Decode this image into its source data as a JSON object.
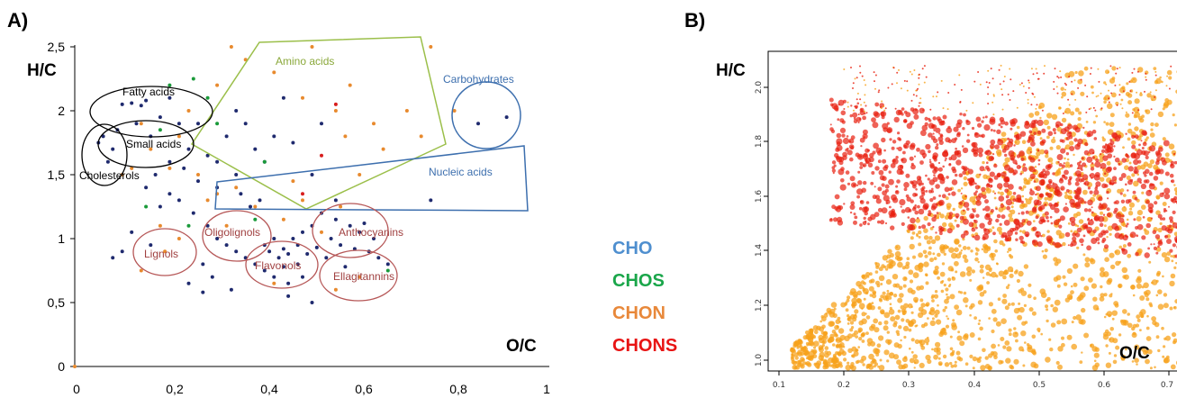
{
  "chart_data": [
    {
      "type": "scatter",
      "panel_label": "A)",
      "xlabel": "O/C",
      "ylabel": "H/C",
      "xlim": [
        0,
        1
      ],
      "ylim": [
        0,
        2.5
      ],
      "x_ticks": [
        "0",
        "0,2",
        "0,4",
        "0,6",
        "0,8",
        "1"
      ],
      "y_ticks": [
        "0",
        "0,5",
        "1",
        "1,5",
        "2",
        "2,5"
      ],
      "grid": false,
      "series": [
        {
          "name": "CHO",
          "color": "#1f2a6e",
          "points": [
            [
              0.05,
              1.75
            ],
            [
              0.06,
              1.8
            ],
            [
              0.07,
              1.6
            ],
            [
              0.08,
              1.7
            ],
            [
              0.09,
              1.85
            ],
            [
              0.1,
              2.05
            ],
            [
              0.12,
              2.06
            ],
            [
              0.14,
              2.04
            ],
            [
              0.15,
              2.08
            ],
            [
              0.13,
              1.9
            ],
            [
              0.16,
              1.8
            ],
            [
              0.18,
              1.95
            ],
            [
              0.2,
              2.1
            ],
            [
              0.22,
              1.9
            ],
            [
              0.24,
              1.7
            ],
            [
              0.2,
              1.6
            ],
            [
              0.17,
              1.5
            ],
            [
              0.15,
              1.4
            ],
            [
              0.22,
              1.3
            ],
            [
              0.25,
              1.2
            ],
            [
              0.28,
              1.1
            ],
            [
              0.3,
              1.0
            ],
            [
              0.32,
              0.95
            ],
            [
              0.34,
              0.9
            ],
            [
              0.36,
              0.85
            ],
            [
              0.38,
              0.8
            ],
            [
              0.4,
              0.95
            ],
            [
              0.41,
              0.9
            ],
            [
              0.42,
              1.0
            ],
            [
              0.43,
              0.85
            ],
            [
              0.44,
              0.92
            ],
            [
              0.45,
              0.88
            ],
            [
              0.46,
              1.0
            ],
            [
              0.47,
              0.95
            ],
            [
              0.48,
              1.05
            ],
            [
              0.5,
              1.1
            ],
            [
              0.52,
              1.2
            ],
            [
              0.54,
              1.0
            ],
            [
              0.55,
              1.15
            ],
            [
              0.56,
              0.95
            ],
            [
              0.58,
              1.1
            ],
            [
              0.6,
              1.05
            ],
            [
              0.62,
              0.9
            ],
            [
              0.64,
              0.85
            ],
            [
              0.66,
              0.8
            ],
            [
              0.3,
              1.6
            ],
            [
              0.32,
              1.8
            ],
            [
              0.34,
              2.0
            ],
            [
              0.36,
              1.9
            ],
            [
              0.38,
              1.7
            ],
            [
              0.4,
              1.6
            ],
            [
              0.42,
              1.8
            ],
            [
              0.44,
              2.1
            ],
            [
              0.46,
              1.75
            ],
            [
              0.5,
              1.5
            ],
            [
              0.52,
              1.9
            ],
            [
              0.35,
              1.35
            ],
            [
              0.37,
              1.25
            ],
            [
              0.39,
              1.3
            ],
            [
              0.27,
              0.8
            ],
            [
              0.29,
              0.7
            ],
            [
              0.33,
              0.6
            ],
            [
              0.45,
              0.65
            ],
            [
              0.48,
              0.7
            ],
            [
              0.5,
              0.5
            ],
            [
              0.45,
              0.55
            ],
            [
              0.26,
              1.45
            ],
            [
              0.23,
              1.55
            ],
            [
              0.2,
              1.35
            ],
            [
              0.18,
              1.25
            ],
            [
              0.12,
              1.05
            ],
            [
              0.1,
              0.9
            ],
            [
              0.08,
              0.85
            ],
            [
              0.16,
              0.95
            ],
            [
              0.24,
              0.65
            ],
            [
              0.27,
              0.58
            ],
            [
              0.34,
              1.5
            ],
            [
              0.28,
              1.65
            ],
            [
              0.3,
              1.4
            ],
            [
              0.26,
              1.9
            ],
            [
              0.4,
              0.75
            ],
            [
              0.42,
              0.7
            ],
            [
              0.44,
              0.78
            ],
            [
              0.47,
              0.8
            ],
            [
              0.49,
              0.88
            ],
            [
              0.51,
              0.93
            ],
            [
              0.53,
              0.85
            ],
            [
              0.57,
              0.78
            ],
            [
              0.59,
              0.92
            ],
            [
              0.61,
              1.12
            ],
            [
              0.63,
              1.0
            ],
            [
              0.55,
              1.3
            ],
            [
              0.75,
              1.3
            ],
            [
              0.85,
              1.9
            ],
            [
              0.91,
              1.95
            ]
          ]
        },
        {
          "name": "CHOS",
          "color": "#1a9a3a",
          "points": [
            [
              0.2,
              2.2
            ],
            [
              0.25,
              2.25
            ],
            [
              0.28,
              2.1
            ],
            [
              0.3,
              1.9
            ],
            [
              0.18,
              1.85
            ],
            [
              0.4,
              1.6
            ],
            [
              0.15,
              1.25
            ],
            [
              0.24,
              1.1
            ],
            [
              0.38,
              1.15
            ],
            [
              0.66,
              0.75
            ]
          ]
        },
        {
          "name": "CHON",
          "color": "#e88a2e",
          "points": [
            [
              0.0,
              0.0
            ],
            [
              0.33,
              2.5
            ],
            [
              0.5,
              2.5
            ],
            [
              0.75,
              2.5
            ],
            [
              0.36,
              2.4
            ],
            [
              0.42,
              2.3
            ],
            [
              0.48,
              2.1
            ],
            [
              0.3,
              2.2
            ],
            [
              0.24,
              2.0
            ],
            [
              0.22,
              1.8
            ],
            [
              0.2,
              1.55
            ],
            [
              0.16,
              1.7
            ],
            [
              0.14,
              1.9
            ],
            [
              0.12,
              1.55
            ],
            [
              0.1,
              1.5
            ],
            [
              0.26,
              1.5
            ],
            [
              0.3,
              1.35
            ],
            [
              0.34,
              1.4
            ],
            [
              0.38,
              1.25
            ],
            [
              0.44,
              1.15
            ],
            [
              0.52,
              1.05
            ],
            [
              0.56,
              1.25
            ],
            [
              0.6,
              1.5
            ],
            [
              0.63,
              1.9
            ],
            [
              0.65,
              1.7
            ],
            [
              0.7,
              2.0
            ],
            [
              0.73,
              1.8
            ],
            [
              0.8,
              2.0
            ],
            [
              0.55,
              2.0
            ],
            [
              0.57,
              1.8
            ],
            [
              0.58,
              2.2
            ],
            [
              0.46,
              1.45
            ],
            [
              0.48,
              1.3
            ],
            [
              0.22,
              1.0
            ],
            [
              0.19,
              0.9
            ],
            [
              0.14,
              0.75
            ],
            [
              0.42,
              0.65
            ],
            [
              0.55,
              0.6
            ],
            [
              0.6,
              0.7
            ],
            [
              0.32,
              1.1
            ],
            [
              0.28,
              1.3
            ],
            [
              0.18,
              1.1
            ]
          ]
        },
        {
          "name": "CHONS",
          "color": "#d81e1e",
          "points": [
            [
              0.55,
              2.05
            ],
            [
              0.52,
              1.65
            ],
            [
              0.48,
              1.35
            ]
          ]
        }
      ],
      "regions": [
        "Amino acids",
        "Carbohydrates",
        "Fatty acids",
        "Small acids",
        "Cholesterols",
        "Nucleic acids",
        "Oligolignols",
        "Anthocyanins",
        "Lignols",
        "Flavonols",
        "Ellagitannins"
      ]
    },
    {
      "type": "scatter",
      "panel_label": "B)",
      "xlabel": "O/C",
      "ylabel": "H/C",
      "xlim": [
        0.08,
        0.72
      ],
      "ylim": [
        0.96,
        2.08
      ],
      "x_ticks": [
        "0.1",
        "0.2",
        "0.3",
        "0.4",
        "0.5",
        "0.6",
        "0.7"
      ],
      "y_ticks": [
        "1.0",
        "1.2",
        "1.4",
        "1.6",
        "1.8",
        "2.0"
      ],
      "grid": false,
      "series": [
        {
          "name": "CHON",
          "color": "#f7a21b"
        },
        {
          "name": "CHONS",
          "color": "#e8200f"
        }
      ]
    }
  ],
  "legend": [
    {
      "label": "CHO",
      "color": "#4f8fcf"
    },
    {
      "label": "CHOS",
      "color": "#1aa64a"
    },
    {
      "label": "CHON",
      "color": "#e8883a"
    },
    {
      "label": "CHONS",
      "color": "#e81414"
    }
  ]
}
